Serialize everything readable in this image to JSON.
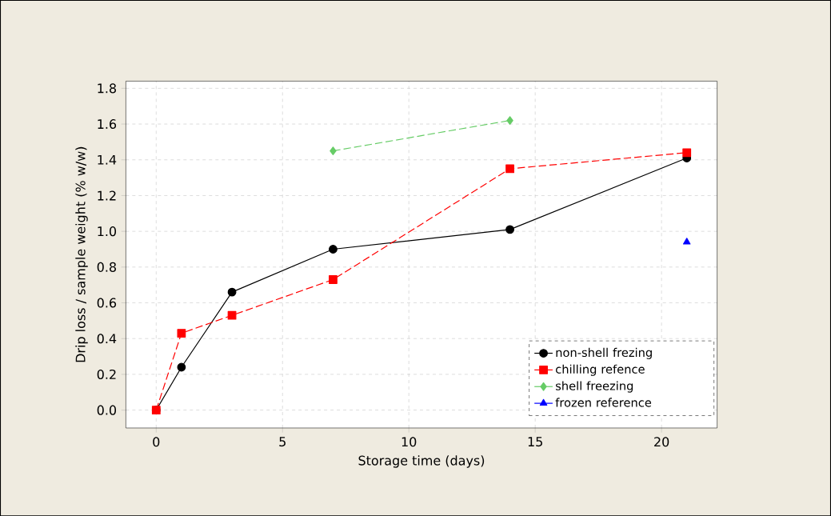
{
  "chart_data": {
    "type": "line",
    "xlabel": "Storage time (days)",
    "ylabel": "Drip loss / sample weight (% w/w)",
    "xlim": [
      -1.2,
      22.2
    ],
    "ylim": [
      -0.1,
      1.84
    ],
    "xticks": [
      0,
      5,
      10,
      15,
      20
    ],
    "yticks": [
      {
        "value": 0,
        "label": "0.0"
      },
      {
        "value": 0.2,
        "label": "0.2"
      },
      {
        "value": 0.4,
        "label": "0.4"
      },
      {
        "value": 0.6,
        "label": "0.6"
      },
      {
        "value": 0.8,
        "label": "0.8"
      },
      {
        "value": 1.0,
        "label": "1.0"
      },
      {
        "value": 1.2,
        "label": "1.2"
      },
      {
        "value": 1.4,
        "label": "1.4"
      },
      {
        "value": 1.6,
        "label": "1.6"
      },
      {
        "value": 1.8,
        "label": "1.8"
      }
    ],
    "grid": true,
    "legend": "bottom right",
    "series": [
      {
        "name": "non-shell frezing",
        "color": "#000000",
        "marker": "circle",
        "line_style": "solid",
        "x": [
          0,
          1,
          3,
          7,
          14,
          21
        ],
        "values": [
          0,
          0.24,
          0.66,
          0.9,
          1.01,
          1.41
        ]
      },
      {
        "name": "chilling refence",
        "color": "#ff0000",
        "marker": "square",
        "line_style": "dashed",
        "x": [
          0,
          1,
          3,
          7,
          14,
          21
        ],
        "values": [
          0,
          0.43,
          0.53,
          0.73,
          1.35,
          1.44
        ]
      },
      {
        "name": "shell freezing",
        "color": "#66cc66",
        "marker": "diamond",
        "line_style": "dashed",
        "x": [
          7,
          14
        ],
        "values": [
          1.45,
          1.62
        ]
      },
      {
        "name": "frozen reference",
        "color": "#0000ff",
        "marker": "triangle",
        "line_style": "dashed",
        "x": [
          21
        ],
        "values": [
          0.94
        ]
      }
    ]
  }
}
